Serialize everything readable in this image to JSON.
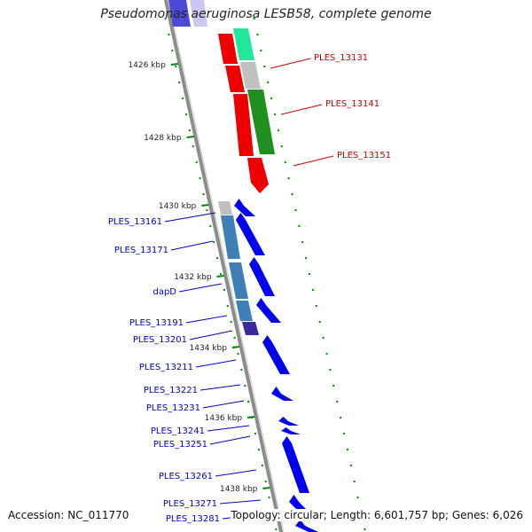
{
  "title": "Pseudomonas aeruginosa LESB58, complete genome",
  "footer": {
    "accession": "Accession: NC_011770",
    "summary": "Topology: circular; Length: 6,601,757 bp; Genes: 6,026"
  },
  "colors": {
    "backbone": "#8c8c8c",
    "red_label": "#cc0000",
    "blue_label": "#0000cc",
    "tick": "#008800",
    "cds_blue": "#0000ee",
    "feature_red": "#ee0000",
    "feature_green": "#1f8f1f",
    "feature_mint": "#21e79a",
    "feature_grey": "#c0c0c0",
    "feature_steel": "#3f7fb8",
    "feature_purple": "#3a2a9a"
  },
  "scale": {
    "unit": "kbp",
    "major_ticks": [
      {
        "label": "1426 kbp"
      },
      {
        "label": "1428 kbp"
      },
      {
        "label": "1430 kbp"
      },
      {
        "label": "1432 kbp"
      },
      {
        "label": "1434 kbp"
      },
      {
        "label": "1436 kbp"
      },
      {
        "label": "1438 kbp"
      }
    ]
  },
  "labels_right": [
    {
      "text": "PLES_13131"
    },
    {
      "text": "PLES_13141"
    },
    {
      "text": "PLES_13151"
    }
  ],
  "labels_left": [
    {
      "text": "PLES_13161"
    },
    {
      "text": "PLES_13171"
    },
    {
      "text": "dapD"
    },
    {
      "text": "PLES_13191"
    },
    {
      "text": "PLES_13201"
    },
    {
      "text": "PLES_13211"
    },
    {
      "text": "PLES_13221"
    },
    {
      "text": "PLES_13231"
    },
    {
      "text": "PLES_13241"
    },
    {
      "text": "PLES_13251"
    },
    {
      "text": "PLES_13261"
    },
    {
      "text": "PLES_13271"
    },
    {
      "text": "PLES_13281"
    }
  ]
}
